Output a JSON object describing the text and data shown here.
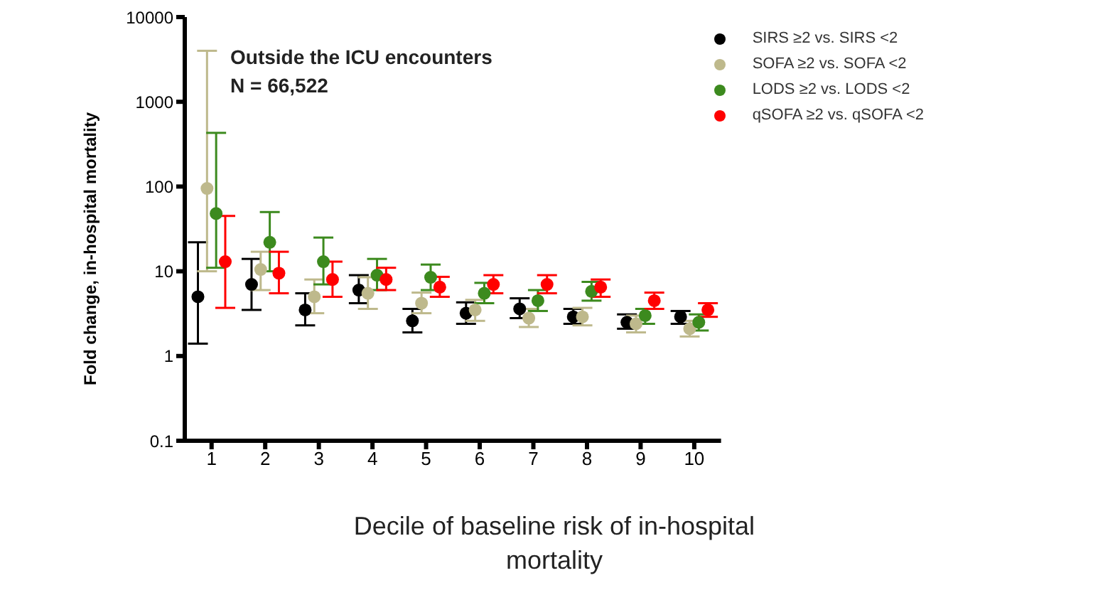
{
  "chart_data": {
    "type": "scatter",
    "title": "Outside the ICU encounters",
    "subtitle": "N = 66,522",
    "xlabel": "Decile of baseline risk of in-hospital mortality",
    "ylabel": "Fold change, in-hospital mortality",
    "categories": [
      "1",
      "2",
      "3",
      "4",
      "5",
      "6",
      "7",
      "8",
      "9",
      "10"
    ],
    "log": "y",
    "ylim": [
      0.1,
      10000
    ],
    "yticks": [
      0.1,
      1,
      10,
      100,
      1000,
      10000
    ],
    "legend": "top right",
    "marker": "circle",
    "series": [
      {
        "name": "SIRS ≥2 vs. SIRS <2",
        "color": "#000000",
        "values": [
          5,
          7,
          3.5,
          6,
          2.6,
          3.2,
          3.6,
          2.9,
          2.5,
          2.9
        ],
        "errors": [
          [
            1.4,
            22
          ],
          [
            3.5,
            14
          ],
          [
            2.3,
            5.5
          ],
          [
            4.2,
            9
          ],
          [
            1.9,
            3.6
          ],
          [
            2.4,
            4.3
          ],
          [
            2.8,
            4.8
          ],
          [
            2.4,
            3.6
          ],
          [
            2.1,
            3.1
          ],
          [
            2.4,
            3.4
          ]
        ]
      },
      {
        "name": "SOFA ≥2 vs. SOFA <2",
        "color": "#beb98c",
        "values": [
          95,
          10.5,
          5,
          5.5,
          4.2,
          3.5,
          2.8,
          2.9,
          2.4,
          2.1
        ],
        "errors": [
          [
            10,
            4000
          ],
          [
            6,
            17
          ],
          [
            3.2,
            8
          ],
          [
            3.6,
            8.5
          ],
          [
            3.2,
            5.6
          ],
          [
            2.6,
            4.6
          ],
          [
            2.2,
            3.6
          ],
          [
            2.3,
            3.7
          ],
          [
            1.9,
            3
          ],
          [
            1.7,
            2.6
          ]
        ]
      },
      {
        "name": "LODS ≥2 vs. LODS <2",
        "color": "#3c8a1e",
        "values": [
          48,
          22,
          13,
          9,
          8.5,
          5.5,
          4.5,
          5.8,
          3,
          2.5
        ],
        "errors": [
          [
            11,
            430
          ],
          [
            10,
            50
          ],
          [
            7,
            25
          ],
          [
            6,
            14
          ],
          [
            6,
            12
          ],
          [
            4.2,
            7.3
          ],
          [
            3.4,
            6
          ],
          [
            4.5,
            7.5
          ],
          [
            2.4,
            3.6
          ],
          [
            2,
            3.1
          ]
        ]
      },
      {
        "name": "qSOFA ≥2 vs. qSOFA <2",
        "color": "#ff0000",
        "values": [
          13,
          9.5,
          8,
          8,
          6.5,
          7,
          7,
          6.5,
          4.5,
          3.5
        ],
        "errors": [
          [
            3.7,
            45
          ],
          [
            5.5,
            17
          ],
          [
            5,
            13
          ],
          [
            6,
            11
          ],
          [
            5,
            8.6
          ],
          [
            5.5,
            9
          ],
          [
            5.5,
            9
          ],
          [
            5,
            8
          ],
          [
            3.6,
            5.6
          ],
          [
            2.9,
            4.2
          ]
        ]
      }
    ]
  }
}
